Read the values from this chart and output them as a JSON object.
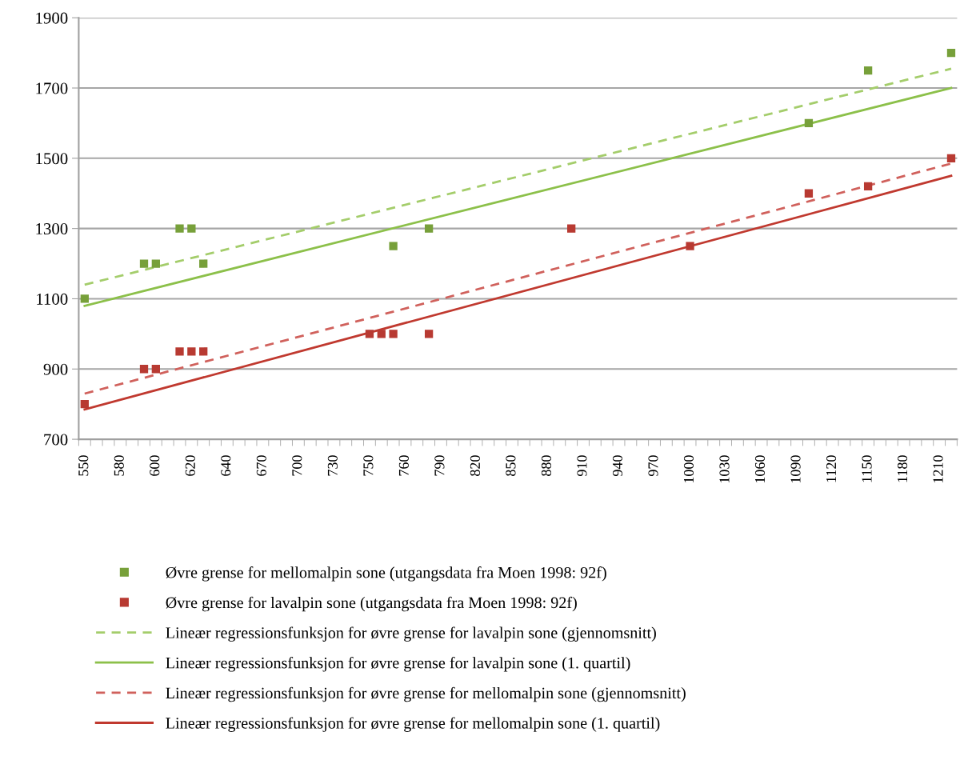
{
  "chart_data": {
    "type": "scatter",
    "categories": [
      "550",
      null,
      null,
      "580",
      null,
      null,
      "600",
      null,
      null,
      "620",
      null,
      null,
      "640",
      null,
      null,
      "670",
      null,
      null,
      "700",
      null,
      null,
      "730",
      null,
      null,
      "750",
      null,
      null,
      "760",
      null,
      null,
      "790",
      null,
      null,
      "820",
      null,
      null,
      "850",
      null,
      null,
      "880",
      null,
      null,
      "910",
      null,
      null,
      "940",
      null,
      null,
      "970",
      null,
      null,
      "1000",
      null,
      null,
      "1030",
      null,
      null,
      "1060",
      null,
      null,
      "1090",
      null,
      null,
      "1120",
      null,
      null,
      "1150",
      null,
      null,
      "1180",
      null,
      null,
      "1210",
      null
    ],
    "ylim": [
      700,
      1900
    ],
    "yticks": [
      700,
      900,
      1100,
      1300,
      1500,
      1700,
      1900
    ],
    "grid": "y",
    "legend": "bottom",
    "series": [
      {
        "name": "Øvre grense for mellomalpin sone (utgangsdata fra Moen 1998: 92f)",
        "marker": "square",
        "color": "#77a03a",
        "values": [
          1100,
          null,
          null,
          null,
          null,
          1200,
          1200,
          null,
          1300,
          1300,
          1200,
          null,
          null,
          null,
          null,
          null,
          null,
          null,
          null,
          null,
          null,
          null,
          null,
          null,
          null,
          null,
          1250,
          null,
          null,
          1300,
          null,
          null,
          null,
          null,
          null,
          null,
          null,
          null,
          null,
          null,
          null,
          null,
          null,
          null,
          null,
          null,
          null,
          null,
          null,
          null,
          null,
          null,
          null,
          null,
          null,
          null,
          null,
          null,
          null,
          null,
          null,
          1600,
          null,
          null,
          null,
          null,
          1750,
          null,
          null,
          null,
          null,
          null,
          null,
          1800
        ]
      },
      {
        "name": "Øvre grense for lavalpin sone (utgangsdata fra Moen 1998: 92f)",
        "marker": "square",
        "color": "#b83a32",
        "values": [
          800,
          null,
          null,
          null,
          null,
          900,
          900,
          null,
          950,
          950,
          950,
          null,
          null,
          null,
          null,
          null,
          null,
          null,
          null,
          null,
          null,
          null,
          null,
          null,
          1000,
          1000,
          1000,
          null,
          null,
          1000,
          null,
          null,
          null,
          null,
          null,
          null,
          null,
          null,
          null,
          null,
          null,
          1300,
          null,
          null,
          null,
          null,
          null,
          null,
          null,
          null,
          null,
          1250,
          null,
          null,
          null,
          null,
          null,
          null,
          null,
          null,
          null,
          1400,
          null,
          null,
          null,
          null,
          1420,
          null,
          null,
          null,
          null,
          null,
          null,
          1500
        ]
      },
      {
        "name": "Lineær regressionsfunksjon for øvre grense for lavalpin sone (gjennomsnitt)",
        "type": "line",
        "line_style": "dashed",
        "color": "#a4cd6b",
        "values": [
          1140,
          null,
          null,
          null,
          null,
          null,
          null,
          null,
          null,
          null,
          null,
          null,
          null,
          null,
          null,
          null,
          null,
          null,
          null,
          null,
          null,
          null,
          null,
          null,
          null,
          null,
          null,
          null,
          null,
          null,
          null,
          null,
          null,
          null,
          null,
          null,
          null,
          null,
          null,
          null,
          null,
          null,
          null,
          null,
          null,
          null,
          null,
          null,
          null,
          null,
          null,
          null,
          null,
          null,
          null,
          null,
          null,
          null,
          null,
          null,
          null,
          null,
          null,
          null,
          null,
          null,
          null,
          null,
          null,
          null,
          null,
          null,
          null,
          1755
        ]
      },
      {
        "name": "Lineær regressionsfunksjon for øvre grense for lavalpin sone (1. quartil)",
        "type": "line",
        "line_style": "solid",
        "color": "#8cc04a",
        "values": [
          1080,
          null,
          null,
          null,
          null,
          null,
          null,
          null,
          null,
          null,
          null,
          null,
          null,
          null,
          null,
          null,
          null,
          null,
          null,
          null,
          null,
          null,
          null,
          null,
          null,
          null,
          null,
          null,
          null,
          null,
          null,
          null,
          null,
          null,
          null,
          null,
          null,
          null,
          null,
          null,
          null,
          null,
          null,
          null,
          null,
          null,
          null,
          null,
          null,
          null,
          null,
          null,
          null,
          null,
          null,
          null,
          null,
          null,
          null,
          null,
          null,
          null,
          null,
          null,
          null,
          null,
          null,
          null,
          null,
          null,
          null,
          null,
          null,
          1700
        ]
      },
      {
        "name": "Lineær regressionsfunksjon for øvre grense for mellomalpin sone (gjennomsnitt)",
        "type": "line",
        "line_style": "dashed",
        "color": "#d0615c",
        "values": [
          830,
          null,
          null,
          null,
          null,
          null,
          null,
          null,
          null,
          null,
          null,
          null,
          null,
          null,
          null,
          null,
          null,
          null,
          null,
          null,
          null,
          null,
          null,
          null,
          null,
          null,
          null,
          null,
          null,
          null,
          null,
          null,
          null,
          null,
          null,
          null,
          null,
          null,
          null,
          null,
          null,
          null,
          null,
          null,
          null,
          null,
          null,
          null,
          null,
          null,
          null,
          null,
          null,
          null,
          null,
          null,
          null,
          null,
          null,
          null,
          null,
          null,
          null,
          null,
          null,
          null,
          null,
          null,
          null,
          null,
          null,
          null,
          null,
          1485
        ]
      },
      {
        "name": "Lineær regressionsfunksjon for øvre grense for mellomalpin sone (1. quartil)",
        "type": "line",
        "line_style": "solid",
        "color": "#c0392f",
        "values": [
          785,
          null,
          null,
          null,
          null,
          null,
          null,
          null,
          null,
          null,
          null,
          null,
          null,
          null,
          null,
          null,
          null,
          null,
          null,
          null,
          null,
          null,
          null,
          null,
          null,
          null,
          null,
          null,
          null,
          null,
          null,
          null,
          null,
          null,
          null,
          null,
          null,
          null,
          null,
          null,
          null,
          null,
          null,
          null,
          null,
          null,
          null,
          null,
          null,
          null,
          null,
          null,
          null,
          null,
          null,
          null,
          null,
          null,
          null,
          null,
          null,
          null,
          null,
          null,
          null,
          null,
          null,
          null,
          null,
          null,
          null,
          null,
          null,
          1450
        ]
      }
    ]
  }
}
